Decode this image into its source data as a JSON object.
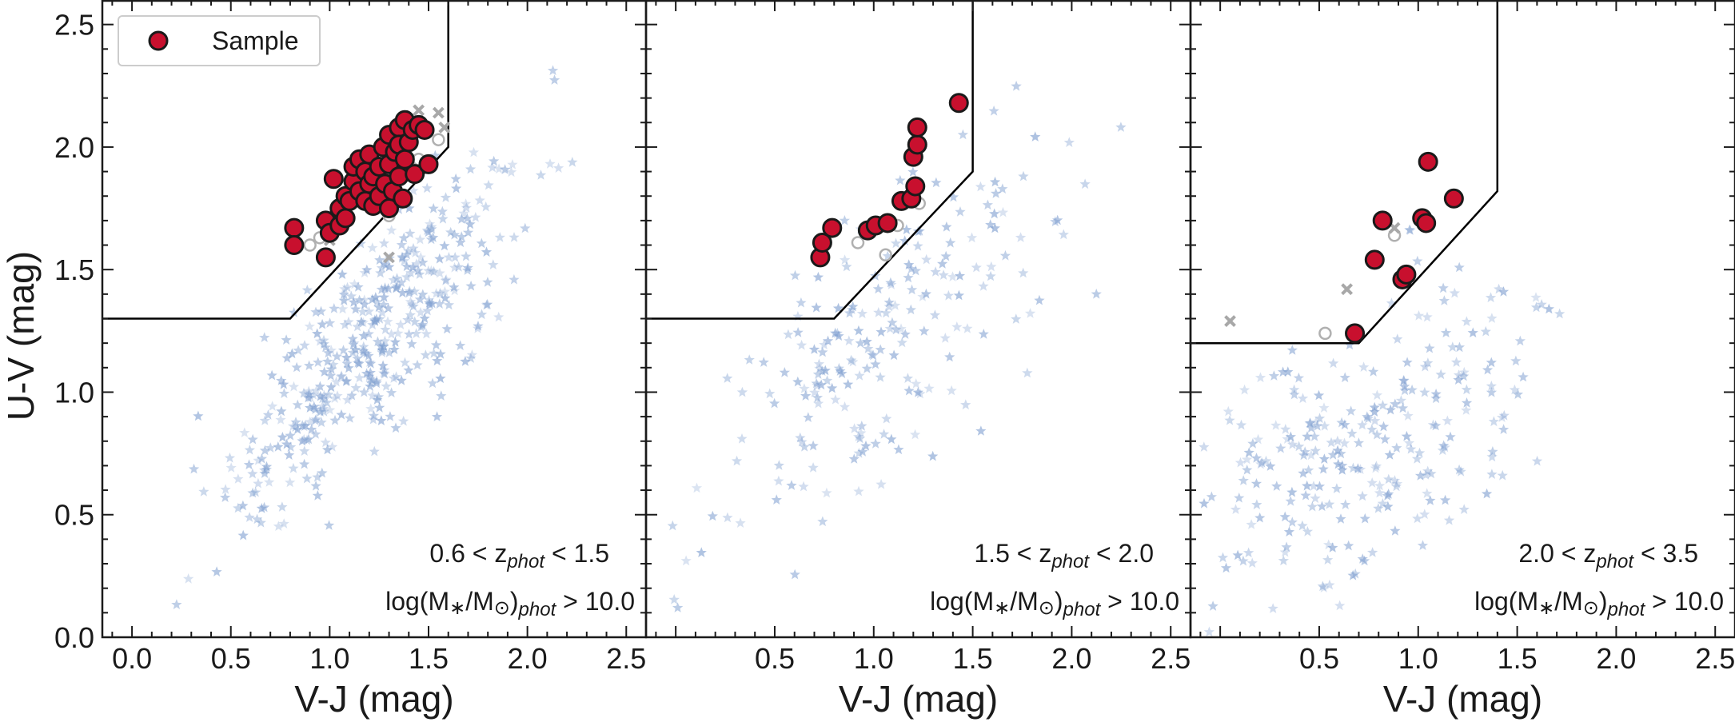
{
  "chart_data": [
    {
      "type": "scatter",
      "panel_label": "0.6 < z_phot < 1.5",
      "annotation": {
        "z_prefix": "0.6 < z",
        "z_sub": "phot",
        "z_suffix": " < 1.5",
        "mass_prefix": "log(M",
        "mass_star": "∗",
        "mass_mid": "/M",
        "mass_sun": "⊙",
        "mass_close": ")",
        "mass_sub": "phot",
        "mass_suffix": " > 10.0"
      },
      "xlabel": "V-J (mag)",
      "ylabel": "U-V (mag)",
      "xlim": [
        -0.15,
        2.6
      ],
      "ylim": [
        0.0,
        2.6
      ],
      "xticks": [
        "0.0",
        "0.5",
        "1.0",
        "1.5",
        "2.0",
        "2.5"
      ],
      "yticks": [
        "0.0",
        "0.5",
        "1.0",
        "1.5",
        "2.0",
        "2.5"
      ],
      "legend": {
        "label": "Sample",
        "location": "top-left"
      },
      "selection_boundary": [
        [
          -0.15,
          1.3
        ],
        [
          0.8,
          1.3
        ],
        [
          1.6,
          2.0
        ],
        [
          1.6,
          2.6
        ]
      ],
      "sample": [
        [
          0.82,
          1.67
        ],
        [
          0.82,
          1.6
        ],
        [
          0.98,
          1.7
        ],
        [
          0.98,
          1.55
        ],
        [
          1.0,
          1.65
        ],
        [
          1.02,
          1.87
        ],
        [
          1.05,
          1.75
        ],
        [
          1.05,
          1.68
        ],
        [
          1.08,
          1.8
        ],
        [
          1.08,
          1.71
        ],
        [
          1.1,
          1.78
        ],
        [
          1.12,
          1.86
        ],
        [
          1.12,
          1.92
        ],
        [
          1.15,
          1.82
        ],
        [
          1.15,
          1.95
        ],
        [
          1.18,
          1.9
        ],
        [
          1.18,
          1.78
        ],
        [
          1.2,
          1.85
        ],
        [
          1.2,
          1.97
        ],
        [
          1.22,
          1.76
        ],
        [
          1.22,
          1.88
        ],
        [
          1.25,
          1.92
        ],
        [
          1.25,
          1.8
        ],
        [
          1.27,
          2.0
        ],
        [
          1.28,
          1.85
        ],
        [
          1.3,
          1.75
        ],
        [
          1.3,
          1.93
        ],
        [
          1.3,
          2.05
        ],
        [
          1.32,
          1.82
        ],
        [
          1.33,
          1.98
        ],
        [
          1.35,
          2.08
        ],
        [
          1.35,
          1.88
        ],
        [
          1.35,
          2.01
        ],
        [
          1.37,
          1.79
        ],
        [
          1.38,
          1.95
        ],
        [
          1.38,
          2.11
        ],
        [
          1.4,
          2.02
        ],
        [
          1.42,
          2.07
        ],
        [
          1.43,
          1.89
        ],
        [
          1.45,
          2.09
        ],
        [
          1.48,
          2.07
        ],
        [
          1.5,
          1.93
        ]
      ],
      "open_circles": [
        [
          0.9,
          1.6
        ],
        [
          0.95,
          1.63
        ],
        [
          1.45,
          1.95
        ],
        [
          1.55,
          2.03
        ],
        [
          1.3,
          1.72
        ]
      ],
      "crosses": [
        [
          1.45,
          2.15
        ],
        [
          1.55,
          2.14
        ],
        [
          1.3,
          1.55
        ],
        [
          1.0,
          1.62
        ],
        [
          1.58,
          2.08
        ]
      ],
      "field_seed": 11,
      "field_count": 430,
      "field_center": [
        1.25,
        1.25
      ],
      "field_spread": [
        0.38,
        0.35
      ],
      "field_corr": 0.82
    },
    {
      "type": "scatter",
      "panel_label": "1.5 < z_phot < 2.0",
      "annotation": {
        "z_prefix": "1.5 < z",
        "z_sub": "phot",
        "z_suffix": " < 2.0",
        "mass_prefix": "log(M",
        "mass_star": "∗",
        "mass_mid": "/M",
        "mass_sun": "⊙",
        "mass_close": ")",
        "mass_sub": "phot",
        "mass_suffix": " > 10.0"
      },
      "xlabel": "V-J (mag)",
      "xlim": [
        -0.15,
        2.6
      ],
      "ylim": [
        0.0,
        2.6
      ],
      "xticks": [
        "0.5",
        "1.0",
        "1.5",
        "2.0",
        "2.5"
      ],
      "selection_boundary": [
        [
          -0.15,
          1.3
        ],
        [
          0.8,
          1.3
        ],
        [
          1.5,
          1.9
        ],
        [
          1.5,
          2.6
        ]
      ],
      "sample": [
        [
          0.73,
          1.55
        ],
        [
          0.74,
          1.61
        ],
        [
          0.79,
          1.67
        ],
        [
          0.97,
          1.66
        ],
        [
          1.01,
          1.68
        ],
        [
          1.07,
          1.69
        ],
        [
          1.14,
          1.78
        ],
        [
          1.19,
          1.79
        ],
        [
          1.2,
          1.96
        ],
        [
          1.21,
          1.84
        ],
        [
          1.22,
          2.01
        ],
        [
          1.22,
          2.08
        ],
        [
          1.43,
          2.18
        ]
      ],
      "open_circles": [
        [
          0.92,
          1.61
        ],
        [
          1.06,
          1.56
        ],
        [
          1.12,
          1.68
        ],
        [
          1.23,
          1.77
        ]
      ],
      "crosses": [],
      "field_seed": 23,
      "field_count": 210,
      "field_center": [
        1.05,
        1.2
      ],
      "field_spread": [
        0.42,
        0.38
      ],
      "field_corr": 0.75
    },
    {
      "type": "scatter",
      "panel_label": "2.0 < z_phot < 3.5",
      "annotation": {
        "z_prefix": "2.0 < z",
        "z_sub": "phot",
        "z_suffix": " < 3.5",
        "mass_prefix": "log(M",
        "mass_star": "∗",
        "mass_mid": "/M",
        "mass_sun": "⊙",
        "mass_close": ")",
        "mass_sub": "phot",
        "mass_suffix": " > 10.0"
      },
      "xlabel": "V-J (mag)",
      "xlim": [
        -0.15,
        2.6
      ],
      "ylim": [
        0.0,
        2.6
      ],
      "xticks": [
        "0.5",
        "1.0",
        "1.5",
        "2.0",
        "2.5"
      ],
      "selection_boundary": [
        [
          -0.15,
          1.2
        ],
        [
          0.7,
          1.2
        ],
        [
          1.4,
          1.82
        ],
        [
          1.4,
          2.6
        ]
      ],
      "sample": [
        [
          0.68,
          1.24
        ],
        [
          0.78,
          1.54
        ],
        [
          0.82,
          1.7
        ],
        [
          0.92,
          1.46
        ],
        [
          0.94,
          1.48
        ],
        [
          1.02,
          1.71
        ],
        [
          1.04,
          1.69
        ],
        [
          1.05,
          1.94
        ],
        [
          1.18,
          1.79
        ]
      ],
      "open_circles": [
        [
          0.53,
          1.24
        ],
        [
          0.88,
          1.64
        ]
      ],
      "crosses": [
        [
          0.05,
          1.29
        ],
        [
          0.64,
          1.42
        ],
        [
          0.88,
          1.67
        ]
      ],
      "field_seed": 37,
      "field_count": 260,
      "field_center": [
        0.7,
        0.75
      ],
      "field_spread": [
        0.45,
        0.32
      ],
      "field_corr": 0.55
    }
  ],
  "colors": {
    "sample_fill": "#c8102e",
    "sample_edge": "#1a1a1a",
    "field_star": "#7f9fd0",
    "open_circle": "#b0b0b0",
    "cross": "#a8a8a8",
    "boundary": "#000000"
  }
}
